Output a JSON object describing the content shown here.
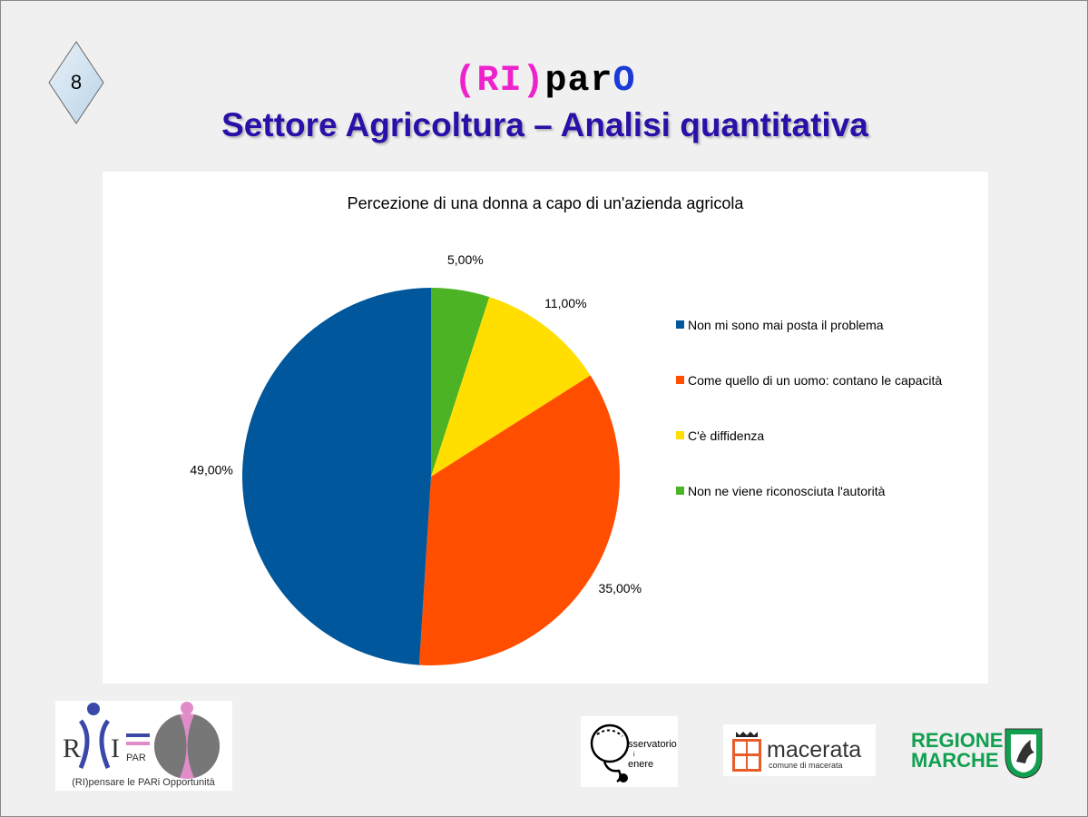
{
  "slide": {
    "page_number": "8",
    "brand": {
      "part1": "(RI)",
      "part2": "par",
      "part3": "O"
    },
    "title": "Settore Agricoltura – Analisi quantitativa"
  },
  "chart_data": {
    "type": "pie",
    "title": "Percezione di una donna a capo di un'azienda agricola",
    "legend_position": "right",
    "slices": [
      {
        "label": "Non mi sono mai posta il problema",
        "value": 49,
        "display": "49,00%",
        "color": "#00579b"
      },
      {
        "label": "Come quello di un uomo: contano le capacità",
        "value": 35,
        "display": "35,00%",
        "color": "#ff4e00"
      },
      {
        "label": "C'è diffidenza",
        "value": 11,
        "display": "11,00%",
        "color": "#ffde00"
      },
      {
        "label": "Non ne viene riconosciuta l'autorità",
        "value": 5,
        "display": "5,00%",
        "color": "#4bb324"
      }
    ]
  },
  "logos": {
    "ripar": {
      "caption": "(RI)pensare le PARi Opportunità",
      "letters_left": "R",
      "letters_mid": "I",
      "letters_par": "PAR"
    },
    "osservatorio": {
      "text1": "sservatorio",
      "text2": "i",
      "text3": "enere"
    },
    "macerata": {
      "name": "macerata",
      "sub": "comune di macerata"
    },
    "regione": {
      "line1": "REGIONE",
      "line2": "MARCHE"
    }
  }
}
